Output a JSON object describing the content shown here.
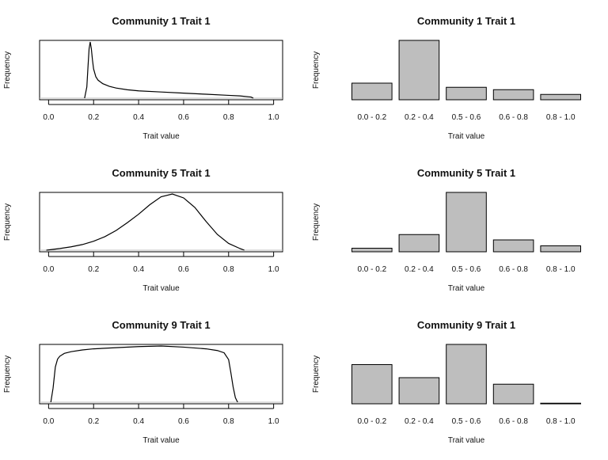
{
  "chart_data": [
    {
      "type": "line",
      "title": "Community 1 Trait 1",
      "xlabel": "Trait value",
      "ylabel": "Frequency",
      "xlim": [
        -0.04,
        1.04
      ],
      "xticks": [
        "0.0",
        "0.2",
        "0.4",
        "0.6",
        "0.8",
        "1.0"
      ],
      "x": [
        0.16,
        0.17,
        0.175,
        0.18,
        0.185,
        0.19,
        0.195,
        0.2,
        0.21,
        0.22,
        0.24,
        0.27,
        0.3,
        0.35,
        0.4,
        0.5,
        0.6,
        0.7,
        0.8,
        0.85,
        0.9,
        0.91
      ],
      "values": [
        0.0,
        0.2,
        0.55,
        0.88,
        1.0,
        0.88,
        0.68,
        0.52,
        0.38,
        0.32,
        0.26,
        0.21,
        0.18,
        0.15,
        0.13,
        0.11,
        0.09,
        0.07,
        0.05,
        0.04,
        0.02,
        0.0
      ]
    },
    {
      "type": "bar",
      "title": "Community 1 Trait 1",
      "xlabel": "Trait value",
      "ylabel": "Frequency",
      "categories": [
        "0.0 - 0.2",
        "0.2 - 0.4",
        "0.5 - 0.6",
        "0.6 - 0.8",
        "0.8 - 1.0"
      ],
      "values": [
        0.28,
        1.0,
        0.21,
        0.17,
        0.09
      ],
      "ylim": [
        0,
        1
      ]
    },
    {
      "type": "line",
      "title": "Community 5 Trait 1",
      "xlabel": "Trait value",
      "ylabel": "Frequency",
      "xlim": [
        -0.04,
        1.04
      ],
      "xticks": [
        "0.0",
        "0.2",
        "0.4",
        "0.6",
        "0.8",
        "1.0"
      ],
      "x": [
        -0.01,
        0.05,
        0.1,
        0.15,
        0.2,
        0.25,
        0.3,
        0.35,
        0.4,
        0.45,
        0.5,
        0.55,
        0.6,
        0.65,
        0.7,
        0.75,
        0.8,
        0.85,
        0.87
      ],
      "values": [
        0.0,
        0.03,
        0.06,
        0.1,
        0.16,
        0.24,
        0.35,
        0.49,
        0.64,
        0.81,
        0.95,
        1.0,
        0.93,
        0.76,
        0.51,
        0.28,
        0.12,
        0.03,
        0.0
      ]
    },
    {
      "type": "bar",
      "title": "Community 5 Trait 1",
      "xlabel": "Trait value",
      "ylabel": "Frequency",
      "categories": [
        "0.0 - 0.2",
        "0.2 - 0.4",
        "0.5 - 0.6",
        "0.6 - 0.8",
        "0.8 - 1.0"
      ],
      "values": [
        0.06,
        0.29,
        1.0,
        0.2,
        0.1
      ],
      "ylim": [
        0,
        1
      ]
    },
    {
      "type": "line",
      "title": "Community 9 Trait 1",
      "xlabel": "Trait value",
      "ylabel": "Frequency",
      "xlim": [
        -0.04,
        1.04
      ],
      "xticks": [
        "0.0",
        "0.2",
        "0.4",
        "0.6",
        "0.8",
        "1.0"
      ],
      "x": [
        0.01,
        0.02,
        0.03,
        0.04,
        0.05,
        0.07,
        0.1,
        0.15,
        0.2,
        0.3,
        0.4,
        0.5,
        0.6,
        0.7,
        0.75,
        0.78,
        0.8,
        0.81,
        0.82,
        0.83,
        0.84
      ],
      "values": [
        0.0,
        0.25,
        0.62,
        0.76,
        0.81,
        0.86,
        0.89,
        0.92,
        0.94,
        0.96,
        0.98,
        0.99,
        0.97,
        0.94,
        0.91,
        0.87,
        0.75,
        0.52,
        0.27,
        0.08,
        0.0
      ]
    },
    {
      "type": "bar",
      "title": "Community 9 Trait 1",
      "xlabel": "Trait value",
      "ylabel": "Frequency",
      "categories": [
        "0.0 - 0.2",
        "0.2 - 0.4",
        "0.5 - 0.6",
        "0.6 - 0.8",
        "0.8 - 1.0"
      ],
      "values": [
        0.66,
        0.44,
        1.0,
        0.33,
        0.01
      ],
      "ylim": [
        0,
        1
      ]
    }
  ]
}
